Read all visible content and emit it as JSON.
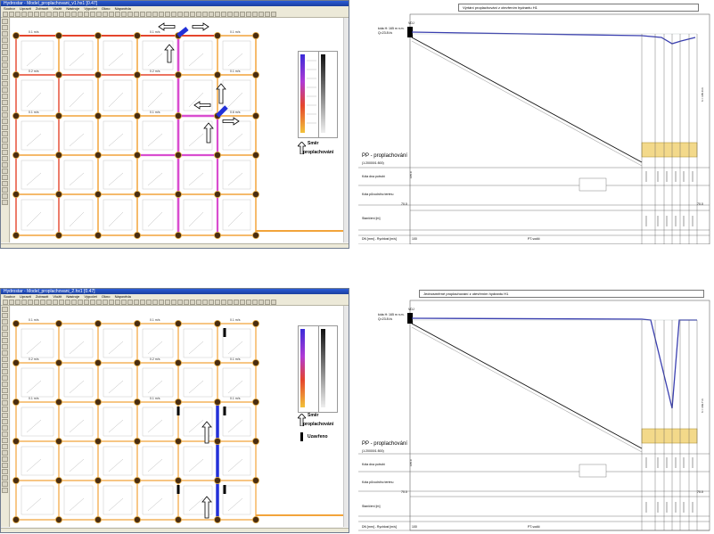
{
  "colors": {
    "pipe_flushed": "#d94dd0",
    "pipe_red": "#e5452c",
    "pipe_orange": "#f2a43a",
    "pipe_blue": "#2230d8",
    "node_fill": "#4a2d10",
    "profile_line": "#3a3fb0",
    "profile_box": "#f3d98a",
    "title_blue": "#2a5bd7"
  },
  "top_left": {
    "title": "Hydrostar - Model_proplachovani_v1.hx1 [0.47]",
    "menu": [
      "Soubor",
      "Upravit",
      "Zobrazit",
      "Vložit",
      "Nástroje",
      "Výpočet",
      "Okno",
      "Nápověda"
    ],
    "legend_note_line1": "Směr",
    "legend_note_line2": "proplachování",
    "edge_labels": [
      "0.1 m/s",
      "0.1 m/s",
      "0.1 m/s",
      "0.2 m/s",
      "0.2 m/s",
      "0.1 m/s",
      "0.1 m/s",
      "0.1 m/s",
      "0.6 m/s"
    ]
  },
  "bottom_left": {
    "title": "Hydrostar - Model_proplachovani_2.hx1 [0.47]",
    "menu": [
      "Soubor",
      "Upravit",
      "Zobrazit",
      "Vložit",
      "Nástroje",
      "Výpočet",
      "Okno",
      "Nápověda"
    ],
    "legend_note_line1": "Směr",
    "legend_note_line2": "proplachování",
    "legend_note_line3": "Uzavřeno",
    "edge_labels": [
      "0.1 m/s",
      "0.1 m/s",
      "0.1 m/s",
      "0.2 m/s",
      "0.2 m/s",
      "0.1 m/s",
      "0.1 m/s",
      "0.1 m/s",
      "0.1 m/s"
    ]
  },
  "top_right": {
    "header": "Výrtání proplachování z otevřením hydrantu H1",
    "source_name": "VDJ",
    "source_info_1": "kóta H: 165 m n.m.",
    "source_info_2": "Q=23.8 l/s",
    "section_title": "PP - proplachování",
    "section_sub": "(1:20000/1:500)",
    "row_labels": [
      "Kóta dna potrubí",
      "Kóta původního terénu",
      "Staničení [m]",
      "DN [mm] - Rychlost [m/s]"
    ],
    "left_value": "165.0",
    "level_value": "70.0",
    "right_value": "70.0",
    "bottom_scale": "PT-vodič",
    "bottom_dn": "100",
    "right_axis_label": "h = 165.0 m"
  },
  "bottom_right": {
    "header": "Jednosměrné proplachování z otevřením hydrantu H1",
    "source_name": "VDJ",
    "source_info_1": "kóta H: 165 m n.m.",
    "source_info_2": "Q=23.8 l/s",
    "section_title": "PP - proplachování",
    "section_sub": "(1:20000/1:500)",
    "row_labels": [
      "Kóta dna potrubí",
      "Kóta původního terénu",
      "Staničení [m]",
      "DN [mm] - Rychlost [m/s]"
    ],
    "left_value": "165.0",
    "level_value": "70.0",
    "right_value": "70.0",
    "bottom_scale": "PT-vodič",
    "bottom_dn": "100",
    "right_axis_label": "h = 169.7 m"
  }
}
